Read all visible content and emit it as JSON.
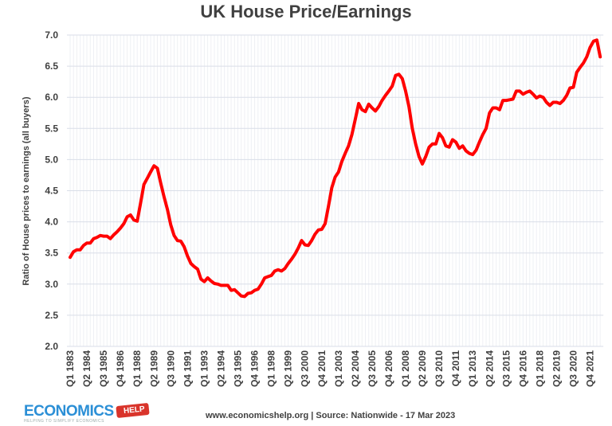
{
  "chart_data": {
    "type": "line",
    "title": "UK House Price/Earnings",
    "ylabel": "Ratio of House prices to earnings (all buyers)",
    "xlabel": "",
    "x_start": "Q1 1983",
    "x_frequency": "quarterly",
    "ylim": [
      2.0,
      7.0
    ],
    "y_ticks": [
      "2.0",
      "2.5",
      "3.0",
      "3.5",
      "4.0",
      "4.5",
      "5.0",
      "5.5",
      "6.0",
      "6.5",
      "7.0"
    ],
    "x_tick_labels": [
      "Q1 1983",
      "Q2 1984",
      "Q3 1985",
      "Q4 1986",
      "Q1 1988",
      "Q2 1989",
      "Q3 1990",
      "Q4 1991",
      "Q1 1993",
      "Q2 1994",
      "Q3 1995",
      "Q4 1996",
      "Q1 1998",
      "Q2 1999",
      "Q3 2000",
      "Q4 2001",
      "Q1 2003",
      "Q2 2004",
      "Q3 2005",
      "Q4 2006",
      "Q1 2008",
      "Q2 2009",
      "Q3 2010",
      "Q4 2011",
      "Q1 2013",
      "Q2 2014",
      "Q3 2015",
      "Q4 2016",
      "Q1 2018",
      "Q2 2019",
      "Q3 2020",
      "Q4 2021"
    ],
    "grid": true,
    "line_color": "#ff0000",
    "values": [
      3.43,
      3.52,
      3.55,
      3.55,
      3.62,
      3.66,
      3.66,
      3.73,
      3.75,
      3.78,
      3.77,
      3.77,
      3.73,
      3.79,
      3.84,
      3.9,
      3.97,
      4.08,
      4.11,
      4.03,
      4.01,
      4.3,
      4.6,
      4.7,
      4.8,
      4.9,
      4.86,
      4.62,
      4.4,
      4.2,
      3.95,
      3.78,
      3.7,
      3.69,
      3.6,
      3.45,
      3.33,
      3.28,
      3.24,
      3.08,
      3.04,
      3.1,
      3.05,
      3.01,
      3.0,
      2.98,
      2.98,
      2.98,
      2.9,
      2.91,
      2.86,
      2.81,
      2.8,
      2.85,
      2.86,
      2.9,
      2.92,
      3.0,
      3.1,
      3.12,
      3.14,
      3.21,
      3.23,
      3.21,
      3.25,
      3.33,
      3.4,
      3.48,
      3.58,
      3.7,
      3.63,
      3.62,
      3.7,
      3.8,
      3.87,
      3.88,
      3.97,
      4.25,
      4.55,
      4.72,
      4.8,
      4.97,
      5.1,
      5.22,
      5.4,
      5.65,
      5.9,
      5.8,
      5.77,
      5.89,
      5.83,
      5.78,
      5.85,
      5.95,
      6.03,
      6.1,
      6.18,
      6.35,
      6.37,
      6.3,
      6.1,
      5.85,
      5.5,
      5.25,
      5.05,
      4.93,
      5.05,
      5.2,
      5.25,
      5.25,
      5.42,
      5.35,
      5.22,
      5.2,
      5.32,
      5.28,
      5.18,
      5.22,
      5.14,
      5.1,
      5.08,
      5.15,
      5.28,
      5.4,
      5.5,
      5.75,
      5.83,
      5.83,
      5.8,
      5.95,
      5.95,
      5.96,
      5.97,
      6.1,
      6.1,
      6.05,
      6.08,
      6.1,
      6.05,
      5.99,
      6.02,
      6.0,
      5.92,
      5.87,
      5.92,
      5.92,
      5.9,
      5.95,
      6.03,
      6.15,
      6.16,
      6.4,
      6.48,
      6.55,
      6.65,
      6.8,
      6.9,
      6.92,
      6.65
    ]
  },
  "logo": {
    "name": "ECONOMICS",
    "tag": "HELP",
    "tagline": "HELPING TO SIMPLIFY ECONOMICS"
  },
  "footer": "www.economicshelp.org | Source: Nationwide - 17 Mar 2023"
}
